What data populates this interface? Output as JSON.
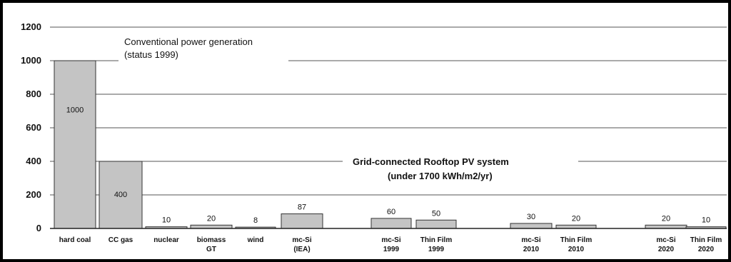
{
  "chart_data": {
    "type": "bar",
    "categories": [
      [
        "hard coal"
      ],
      [
        "CC gas"
      ],
      [
        "nuclear"
      ],
      [
        "biomass",
        "GT"
      ],
      [
        "wind"
      ],
      [
        "mc-Si",
        "(IEA)"
      ],
      [
        "mc-Si",
        "1999"
      ],
      [
        "Thin Film",
        "1999"
      ],
      [
        "mc-Si",
        "2010"
      ],
      [
        "Thin Film",
        "2010"
      ],
      [
        "mc-Si",
        "2020"
      ],
      [
        "Thin Film",
        "2020"
      ]
    ],
    "values": [
      1000,
      400,
      10,
      20,
      8,
      87,
      60,
      50,
      30,
      20,
      20,
      10
    ],
    "value_labels": [
      "1000",
      "400",
      "10",
      "20",
      "8",
      "87",
      "60",
      "50",
      "30",
      "20",
      "20",
      "10"
    ],
    "yticks": [
      "0",
      "200",
      "400",
      "600",
      "800",
      "1000",
      "1200"
    ],
    "ylim": [
      0,
      1200
    ],
    "grid": true,
    "annotations": {
      "conventional": [
        "Conventional power generation",
        "(status 1999)"
      ],
      "pv": [
        "Grid-connected  Rooftop PV system",
        "(under 1700 kWh/m2/yr)"
      ]
    },
    "colors": {
      "bar": "#c4c4c4",
      "bar_stroke": "#333333",
      "grid": "#555555",
      "frame": "#000000"
    }
  }
}
